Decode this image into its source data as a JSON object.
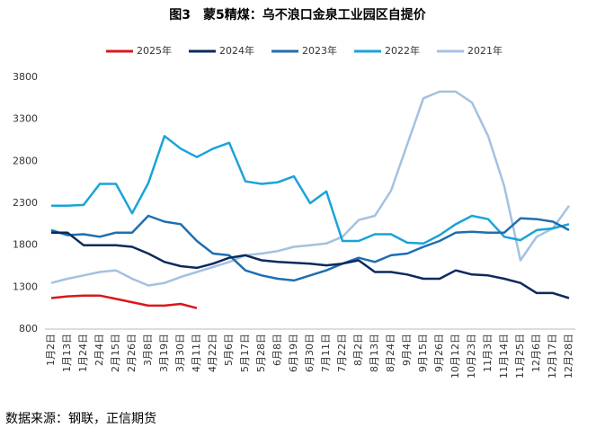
{
  "chart_data": {
    "type": "line",
    "title": "图3　蒙5精煤：乌不浪口金泉工业园区自提价",
    "source": "数据来源：钢联，正信期货",
    "categories": [
      "1月2日",
      "1月13日",
      "1月24日",
      "2月4日",
      "2月15日",
      "2月26日",
      "3月8日",
      "3月19日",
      "3月30日",
      "4月11日",
      "4月22日",
      "5月6日",
      "5月17日",
      "5月28日",
      "6月8日",
      "6月19日",
      "6月30日",
      "7月11日",
      "7月22日",
      "8月2日",
      "8月13日",
      "8月24日",
      "9月4日",
      "9月15日",
      "9月26日",
      "10月12日",
      "10月23日",
      "11月3日",
      "11月14日",
      "11月25日",
      "12月6日",
      "12月17日",
      "12月28日"
    ],
    "series": [
      {
        "name": "2025年",
        "color": "#d7191c",
        "values": [
          1170,
          1190,
          1200,
          1200,
          1160,
          1120,
          1080,
          1080,
          1100,
          1050,
          null,
          null,
          null,
          null,
          null,
          null,
          null,
          null,
          null,
          null,
          null,
          null,
          null,
          null,
          null,
          null,
          null,
          null,
          null,
          null,
          null,
          null,
          null
        ]
      },
      {
        "name": "2024年",
        "color": "#0b2a5c",
        "values": [
          1950,
          1950,
          1800,
          1800,
          1800,
          1780,
          1700,
          1600,
          1550,
          1530,
          1580,
          1650,
          1680,
          1620,
          1600,
          1590,
          1580,
          1560,
          1580,
          1620,
          1480,
          1480,
          1450,
          1400,
          1400,
          1500,
          1450,
          1440,
          1400,
          1350,
          1230,
          1230,
          1170
        ]
      },
      {
        "name": "2023年",
        "color": "#1f6eb0",
        "values": [
          1980,
          1920,
          1930,
          1900,
          1950,
          1950,
          2150,
          2080,
          2050,
          1850,
          1700,
          1680,
          1500,
          1440,
          1400,
          1380,
          1440,
          1500,
          1580,
          1650,
          1600,
          1680,
          1700,
          1780,
          1850,
          1950,
          1960,
          1950,
          1950,
          2120,
          2110,
          2080,
          1980
        ]
      },
      {
        "name": "2022年",
        "color": "#1aa3d9",
        "values": [
          2270,
          2270,
          2280,
          2530,
          2530,
          2180,
          2540,
          3100,
          2950,
          2850,
          2950,
          3020,
          2560,
          2530,
          2550,
          2620,
          2300,
          2440,
          1850,
          1850,
          1930,
          1930,
          1830,
          1820,
          1920,
          2050,
          2150,
          2110,
          1900,
          1860,
          1980,
          2000,
          2050
        ]
      },
      {
        "name": "2021年",
        "color": "#a4c1e0",
        "values": [
          1350,
          1400,
          1440,
          1480,
          1500,
          1400,
          1320,
          1350,
          1420,
          1480,
          1540,
          1600,
          1680,
          1700,
          1730,
          1780,
          1800,
          1820,
          1900,
          2100,
          2150,
          2450,
          3000,
          3550,
          3630,
          3630,
          3500,
          3100,
          2500,
          1620,
          1900,
          2000,
          2270
        ]
      }
    ],
    "ylim": [
      800,
      3800
    ],
    "yticks": [
      800,
      1300,
      1800,
      2300,
      2800,
      3300,
      3800
    ]
  }
}
